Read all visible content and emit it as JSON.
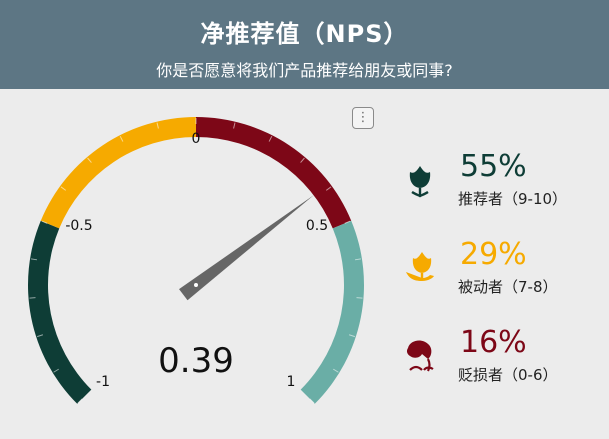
{
  "header": {
    "title": "净推荐值（NPS）",
    "subtitle": "你是否愿意将我们产品推荐给朋友或同事?"
  },
  "menu": {
    "glyph": "⋮",
    "icon": "more-vertical-icon"
  },
  "gauge": {
    "value": 0.39,
    "value_text": "0.39",
    "min": -1,
    "max": 1,
    "tick_labels": [
      {
        "value": -1,
        "text": "-1"
      },
      {
        "value": -0.5,
        "text": "-0.5"
      },
      {
        "value": 0,
        "text": "0"
      },
      {
        "value": 0.5,
        "text": "0.5"
      },
      {
        "value": 1,
        "text": "1"
      }
    ],
    "bands": [
      {
        "from": -1,
        "to": -0.5,
        "color": "#0e3d36"
      },
      {
        "from": -0.5,
        "to": 0,
        "color": "#f6aa00"
      },
      {
        "from": 0,
        "to": 0.5,
        "color": "#7d0717"
      },
      {
        "from": 0.5,
        "to": 1,
        "color": "#6aaea6"
      }
    ],
    "needle_color": "#666666"
  },
  "legend": [
    {
      "percent": "55%",
      "label": "推荐者（9-10）",
      "color": "#0e3d36",
      "icon": "tulip-icon"
    },
    {
      "percent": "29%",
      "label": "被动者（7-8）",
      "color": "#f6aa00",
      "icon": "tulip-hand-icon"
    },
    {
      "percent": "16%",
      "label": "贬损者（0-6）",
      "color": "#7d0717",
      "icon": "wilted-flower-icon"
    }
  ]
}
